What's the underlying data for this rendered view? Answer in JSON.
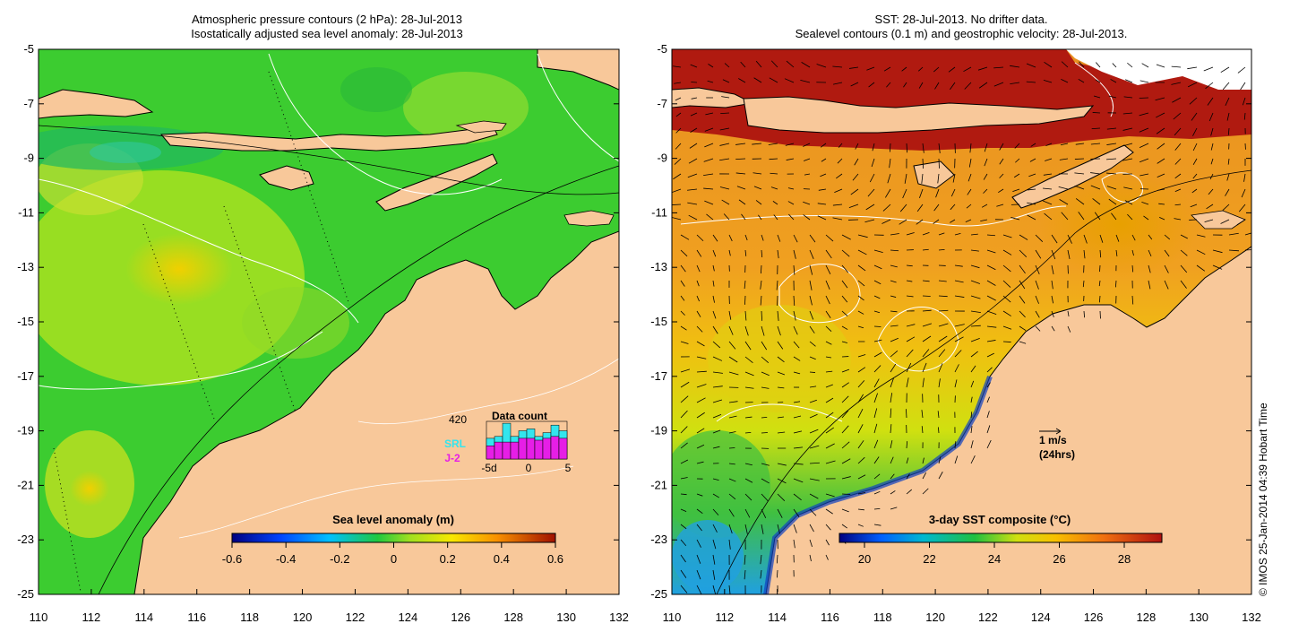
{
  "left_panel": {
    "title_line1": "Atmospheric pressure contours (2 hPa): 28-Jul-2013",
    "title_line2": "Isostatically adjusted sea level anomaly: 28-Jul-2013",
    "colorbar": {
      "label": "Sea level anomaly (m)",
      "ticks": [
        "-0.6",
        "-0.4",
        "-0.2",
        "0",
        "0.2",
        "0.4",
        "0.6"
      ]
    },
    "data_count": {
      "total": "420",
      "title": "Data count",
      "series": [
        {
          "name": "SRL",
          "color": "#33e5ee"
        },
        {
          "name": "J-2",
          "color": "#e61ee6"
        }
      ],
      "xticks": [
        "-5d",
        "0",
        "5"
      ],
      "bars": [
        {
          "srl": 0.55,
          "j2": 0.35
        },
        {
          "srl": 0.6,
          "j2": 0.45
        },
        {
          "srl": 0.95,
          "j2": 0.45
        },
        {
          "srl": 0.6,
          "j2": 0.45
        },
        {
          "srl": 0.75,
          "j2": 0.55
        },
        {
          "srl": 0.8,
          "j2": 0.55
        },
        {
          "srl": 0.6,
          "j2": 0.5
        },
        {
          "srl": 0.7,
          "j2": 0.55
        },
        {
          "srl": 0.9,
          "j2": 0.6
        },
        {
          "srl": 0.75,
          "j2": 0.55
        }
      ]
    }
  },
  "right_panel": {
    "title_line1": "SST: 28-Jul-2013. No drifter data.",
    "title_line2": "Sealevel contours (0.1 m) and geostrophic velocity: 28-Jul-2013.",
    "colorbar": {
      "label": "3-day SST composite (°C)",
      "ticks": [
        "20",
        "22",
        "24",
        "26",
        "28"
      ]
    },
    "velocity_key": {
      "label": "1 m/s",
      "sublabel": "(24hrs)"
    }
  },
  "axes": {
    "x_ticks": [
      "110",
      "112",
      "114",
      "116",
      "118",
      "120",
      "122",
      "124",
      "126",
      "128",
      "130",
      "132"
    ],
    "y_ticks": [
      "-5",
      "-7",
      "-9",
      "-11",
      "-13",
      "-15",
      "-17",
      "-19",
      "-21",
      "-23",
      "-25"
    ]
  },
  "copyright": "© IMOS 25-Jan-2014 04:39 Hobart Time",
  "colors": {
    "land": "#f8c89a",
    "sla_main": "#3ccc30",
    "sst_main": "#f0a020"
  }
}
